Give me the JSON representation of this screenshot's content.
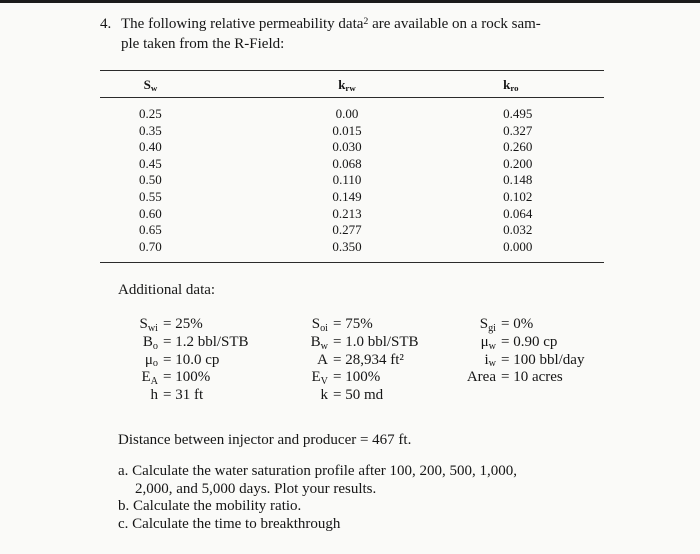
{
  "page": {
    "number": "4.",
    "intro_part1": "The following relative permeability data",
    "intro_sup": "2",
    "intro_part2": " are available on a rock sam-",
    "intro_line2": "ple taken from the R-Field:"
  },
  "table": {
    "headers": [
      {
        "base": "S",
        "sub": "w"
      },
      {
        "base": "k",
        "sub": "rw"
      },
      {
        "base": "k",
        "sub": "ro"
      }
    ],
    "rows": [
      {
        "sw": "0.25",
        "krw": "0.00",
        "kro": "0.495"
      },
      {
        "sw": "0.35",
        "krw": "0.015",
        "kro": "0.327"
      },
      {
        "sw": "0.40",
        "krw": "0.030",
        "kro": "0.260"
      },
      {
        "sw": "0.45",
        "krw": "0.068",
        "kro": "0.200"
      },
      {
        "sw": "0.50",
        "krw": "0.110",
        "kro": "0.148"
      },
      {
        "sw": "0.55",
        "krw": "0.149",
        "kro": "0.102"
      },
      {
        "sw": "0.60",
        "krw": "0.213",
        "kro": "0.064"
      },
      {
        "sw": "0.65",
        "krw": "0.277",
        "kro": "0.032"
      },
      {
        "sw": "0.70",
        "krw": "0.350",
        "kro": "0.000"
      }
    ]
  },
  "additional": {
    "label": "Additional data:",
    "col1": [
      {
        "base": "S",
        "sub": "wi",
        "val": "= 25%"
      },
      {
        "base": "B",
        "sub": "o",
        "val": "= 1.2 bbl/STB"
      },
      {
        "base": "μ",
        "sub": "o",
        "val": "= 10.0 cp"
      },
      {
        "base": "E",
        "sub": "A",
        "val": "= 100%"
      },
      {
        "base": "h",
        "sub": "",
        "val": "= 31 ft"
      }
    ],
    "col2": [
      {
        "base": "S",
        "sub": "oi",
        "val": "= 75%"
      },
      {
        "base": "B",
        "sub": "w",
        "val": "= 1.0 bbl/STB"
      },
      {
        "base": "A",
        "sub": "",
        "val": "= 28,934 ft²"
      },
      {
        "base": "E",
        "sub": "V",
        "val": "= 100%"
      },
      {
        "base": "k",
        "sub": "",
        "val": "= 50 md"
      }
    ],
    "col3": [
      {
        "base": "S",
        "sub": "gi",
        "val": "= 0%"
      },
      {
        "base": "μ",
        "sub": "w",
        "val": "= 0.90 cp"
      },
      {
        "base": "i",
        "sub": "w",
        "val": "= 100 bbl/day"
      },
      {
        "base": "Area",
        "sub": "",
        "val": "= 10 acres"
      }
    ]
  },
  "distance_note": "Distance between injector and producer = 467 ft.",
  "question_lines": [
    {
      "text": "a. Calculate the water saturation profile after 100, 200, 500, 1,000,"
    },
    {
      "text": "2,000, and 5,000 days. Plot your results."
    },
    {
      "text": "b. Calculate the mobility ratio."
    },
    {
      "text": "c. Calculate the time to breakthrough"
    }
  ]
}
